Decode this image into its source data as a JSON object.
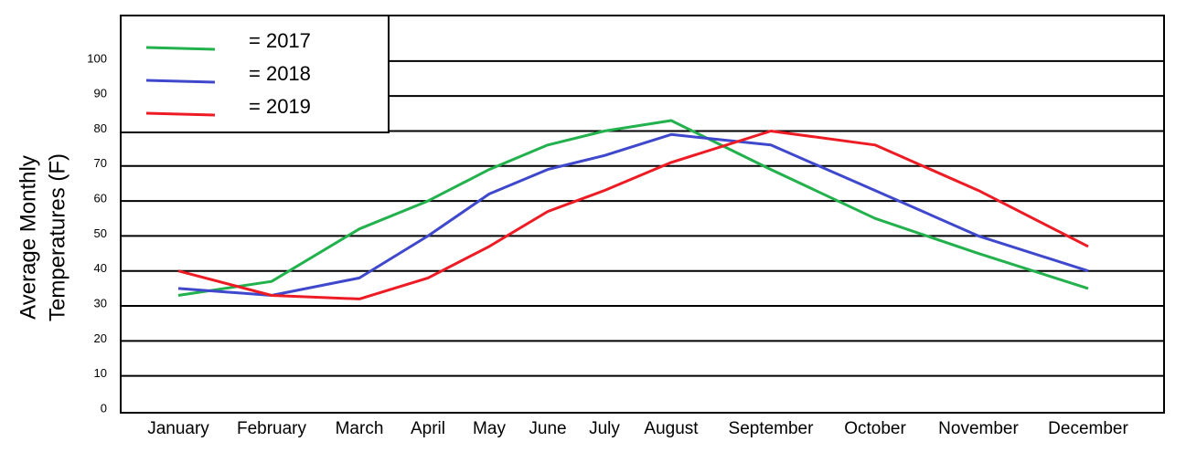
{
  "chart_data": {
    "type": "line",
    "y_label": [
      "Average Monthly",
      "Temperatures (F)"
    ],
    "categories": [
      "January",
      "February",
      "March",
      "April",
      "May",
      "June",
      "July",
      "August",
      "September",
      "October",
      "November",
      "December"
    ],
    "series": [
      {
        "name": "= 2017",
        "color": "#22b14c",
        "values": [
          33,
          37,
          52,
          60,
          69,
          76,
          80,
          83,
          69,
          55,
          45,
          35
        ]
      },
      {
        "name": "= 2018",
        "color": "#3f48cc",
        "values": [
          35,
          33,
          38,
          50,
          62,
          69,
          73,
          79,
          76,
          63,
          50,
          40
        ]
      },
      {
        "name": "= 2019",
        "color": "#ed1c24",
        "values": [
          40,
          33,
          32,
          38,
          47,
          57,
          63,
          71,
          80,
          76,
          63,
          47
        ]
      }
    ],
    "ylim": [
      0,
      113
    ],
    "yticks": [
      0,
      10,
      20,
      30,
      40,
      50,
      60,
      70,
      80,
      90,
      100
    ],
    "grid": true
  }
}
